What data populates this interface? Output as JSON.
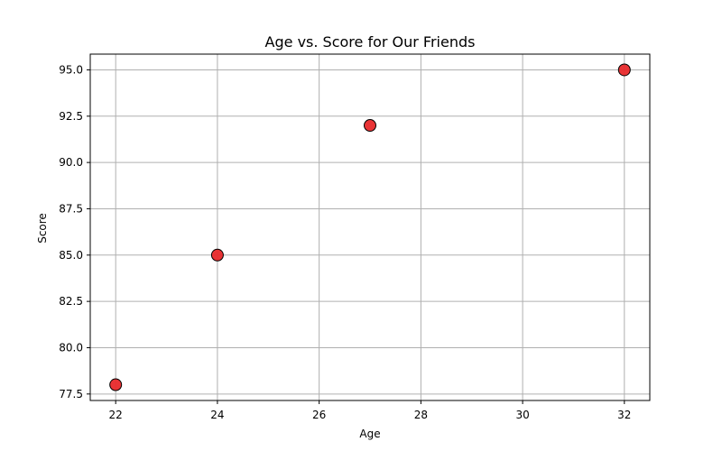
{
  "chart_data": {
    "type": "scatter",
    "title": "Age vs. Score for Our Friends",
    "xlabel": "Age",
    "ylabel": "Score",
    "x": [
      22,
      24,
      27,
      32
    ],
    "y": [
      78,
      85,
      92,
      95
    ],
    "xlim": [
      21.5,
      32.5
    ],
    "ylim": [
      77.15,
      95.85
    ],
    "xticks": [
      22,
      24,
      26,
      28,
      30,
      32
    ],
    "xtick_labels": [
      "22",
      "24",
      "26",
      "28",
      "30",
      "32"
    ],
    "yticks": [
      77.5,
      80.0,
      82.5,
      85.0,
      87.5,
      90.0,
      92.5,
      95.0
    ],
    "ytick_labels": [
      "77.5",
      "80.0",
      "82.5",
      "85.0",
      "87.5",
      "90.0",
      "92.5",
      "95.0"
    ],
    "grid": true,
    "marker_color": "#e8292b",
    "marker_edge_color": "#000000"
  }
}
